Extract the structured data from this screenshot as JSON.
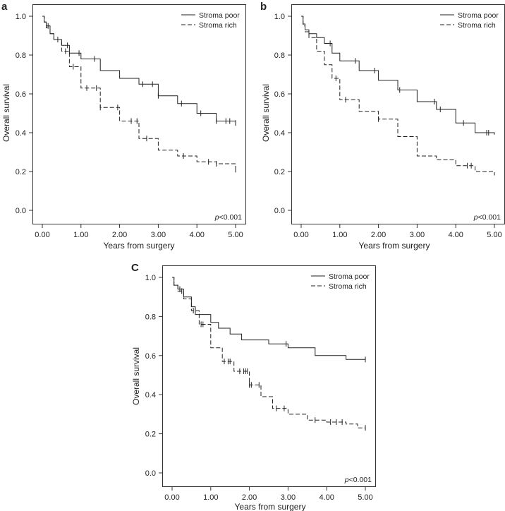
{
  "chart_data": [
    {
      "type": "line",
      "panel_letter": "a",
      "xlabel": "Years from surgery",
      "ylabel": "Overall survival",
      "xlim": [
        0,
        5
      ],
      "ylim": [
        0,
        1
      ],
      "x_ticks": [
        "0.00",
        "1.00",
        "2.00",
        "3.00",
        "4.00",
        "5.00"
      ],
      "y_ticks": [
        "0.0",
        "0.2",
        "0.4",
        "0.6",
        "0.8",
        "1.0"
      ],
      "legend_position": "top-right",
      "annotation_p": "p",
      "annotation_rest": "<0.001",
      "series": [
        {
          "name": "Stroma poor",
          "style": "solid",
          "points": [
            [
              0,
              1.0
            ],
            [
              0.05,
              0.97
            ],
            [
              0.1,
              0.95
            ],
            [
              0.2,
              0.91
            ],
            [
              0.3,
              0.88
            ],
            [
              0.5,
              0.85
            ],
            [
              0.7,
              0.81
            ],
            [
              1.0,
              0.78
            ],
            [
              1.5,
              0.72
            ],
            [
              2.0,
              0.68
            ],
            [
              2.5,
              0.65
            ],
            [
              3.0,
              0.59
            ],
            [
              3.5,
              0.55
            ],
            [
              4.0,
              0.5
            ],
            [
              4.5,
              0.46
            ],
            [
              5.0,
              0.45
            ]
          ],
          "censor_x": [
            0.15,
            0.4,
            0.65,
            0.95,
            1.35,
            2.6,
            2.85,
            3.0,
            3.6,
            4.1,
            4.5,
            4.75,
            4.85,
            5.0
          ]
        },
        {
          "name": "Stroma rich",
          "style": "dashed",
          "points": [
            [
              0,
              1.0
            ],
            [
              0.05,
              0.97
            ],
            [
              0.1,
              0.94
            ],
            [
              0.2,
              0.91
            ],
            [
              0.3,
              0.88
            ],
            [
              0.5,
              0.82
            ],
            [
              0.7,
              0.74
            ],
            [
              1.0,
              0.63
            ],
            [
              1.5,
              0.53
            ],
            [
              2.0,
              0.46
            ],
            [
              2.5,
              0.37
            ],
            [
              3.0,
              0.31
            ],
            [
              3.5,
              0.28
            ],
            [
              4.0,
              0.25
            ],
            [
              4.5,
              0.24
            ],
            [
              5.0,
              0.21
            ]
          ],
          "censor_x": [
            0.6,
            0.8,
            1.15,
            1.4,
            1.5,
            1.95,
            2.3,
            2.45,
            2.7,
            3.65,
            4.3,
            4.5,
            5.0
          ]
        }
      ]
    },
    {
      "type": "line",
      "panel_letter": "b",
      "xlabel": "Years from surgery",
      "ylabel": "Overall survival",
      "xlim": [
        0,
        5
      ],
      "ylim": [
        0,
        1
      ],
      "x_ticks": [
        "0.00",
        "1.00",
        "2.00",
        "3.00",
        "4.00",
        "5.00"
      ],
      "y_ticks": [
        "0.0",
        "0.2",
        "0.4",
        "0.6",
        "0.8",
        "1.0"
      ],
      "legend_position": "top-right",
      "annotation_p": "p",
      "annotation_rest": "<0.001",
      "series": [
        {
          "name": "Stroma poor",
          "style": "solid",
          "points": [
            [
              0,
              1.0
            ],
            [
              0.05,
              0.96
            ],
            [
              0.1,
              0.93
            ],
            [
              0.2,
              0.91
            ],
            [
              0.4,
              0.89
            ],
            [
              0.6,
              0.86
            ],
            [
              0.8,
              0.81
            ],
            [
              1.0,
              0.77
            ],
            [
              1.5,
              0.72
            ],
            [
              2.0,
              0.67
            ],
            [
              2.5,
              0.62
            ],
            [
              3.0,
              0.56
            ],
            [
              3.5,
              0.52
            ],
            [
              4.0,
              0.45
            ],
            [
              4.5,
              0.4
            ],
            [
              5.0,
              0.39
            ]
          ],
          "censor_x": [
            0.75,
            1.4,
            1.9,
            2.55,
            3.45,
            3.6,
            4.2,
            4.8,
            4.85
          ]
        },
        {
          "name": "Stroma rich",
          "style": "dashed",
          "points": [
            [
              0,
              1.0
            ],
            [
              0.05,
              0.95
            ],
            [
              0.1,
              0.92
            ],
            [
              0.2,
              0.89
            ],
            [
              0.4,
              0.82
            ],
            [
              0.6,
              0.75
            ],
            [
              0.8,
              0.68
            ],
            [
              1.0,
              0.57
            ],
            [
              1.5,
              0.51
            ],
            [
              2.0,
              0.47
            ],
            [
              2.5,
              0.38
            ],
            [
              3.0,
              0.28
            ],
            [
              3.5,
              0.26
            ],
            [
              4.0,
              0.23
            ],
            [
              4.5,
              0.2
            ],
            [
              5.0,
              0.18
            ]
          ],
          "censor_x": [
            0.9,
            1.15,
            2.0,
            4.3,
            4.4
          ]
        }
      ]
    },
    {
      "type": "line",
      "panel_letter": "C",
      "xlabel": "Years from surgery",
      "ylabel": "Overall survival",
      "xlim": [
        0,
        5
      ],
      "ylim": [
        0,
        1
      ],
      "x_ticks": [
        "0.00",
        "1.00",
        "2.00",
        "3.00",
        "4.00",
        "5.00"
      ],
      "y_ticks": [
        "0.0",
        "0.2",
        "0.4",
        "0.6",
        "0.8",
        "1.0"
      ],
      "legend_position": "top-right",
      "annotation_p": "p",
      "annotation_rest": "<0.001",
      "series": [
        {
          "name": "Stroma poor",
          "style": "solid",
          "points": [
            [
              0,
              1.0
            ],
            [
              0.05,
              0.96
            ],
            [
              0.15,
              0.94
            ],
            [
              0.3,
              0.9
            ],
            [
              0.5,
              0.85
            ],
            [
              0.6,
              0.81
            ],
            [
              1.0,
              0.77
            ],
            [
              1.2,
              0.74
            ],
            [
              1.5,
              0.71
            ],
            [
              1.8,
              0.68
            ],
            [
              2.5,
              0.66
            ],
            [
              3.0,
              0.64
            ],
            [
              3.7,
              0.6
            ],
            [
              4.5,
              0.58
            ],
            [
              5.0,
              0.58
            ]
          ],
          "censor_x": [
            0.2,
            2.95,
            5.0
          ]
        },
        {
          "name": "Stroma rich",
          "style": "dashed",
          "points": [
            [
              0,
              1.0
            ],
            [
              0.05,
              0.96
            ],
            [
              0.15,
              0.93
            ],
            [
              0.3,
              0.89
            ],
            [
              0.5,
              0.83
            ],
            [
              0.7,
              0.76
            ],
            [
              1.0,
              0.64
            ],
            [
              1.3,
              0.57
            ],
            [
              1.6,
              0.52
            ],
            [
              2.0,
              0.45
            ],
            [
              2.3,
              0.39
            ],
            [
              2.6,
              0.33
            ],
            [
              3.0,
              0.3
            ],
            [
              3.5,
              0.27
            ],
            [
              4.0,
              0.26
            ],
            [
              4.5,
              0.25
            ],
            [
              4.8,
              0.23
            ],
            [
              5.0,
              0.23
            ]
          ],
          "censor_x": [
            0.25,
            0.55,
            0.6,
            0.75,
            0.8,
            1.35,
            1.45,
            1.5,
            1.75,
            1.85,
            1.9,
            1.95,
            2.0,
            2.05,
            2.25,
            2.7,
            2.9,
            3.7,
            4.1,
            4.25,
            4.4,
            5.0
          ]
        }
      ]
    }
  ]
}
